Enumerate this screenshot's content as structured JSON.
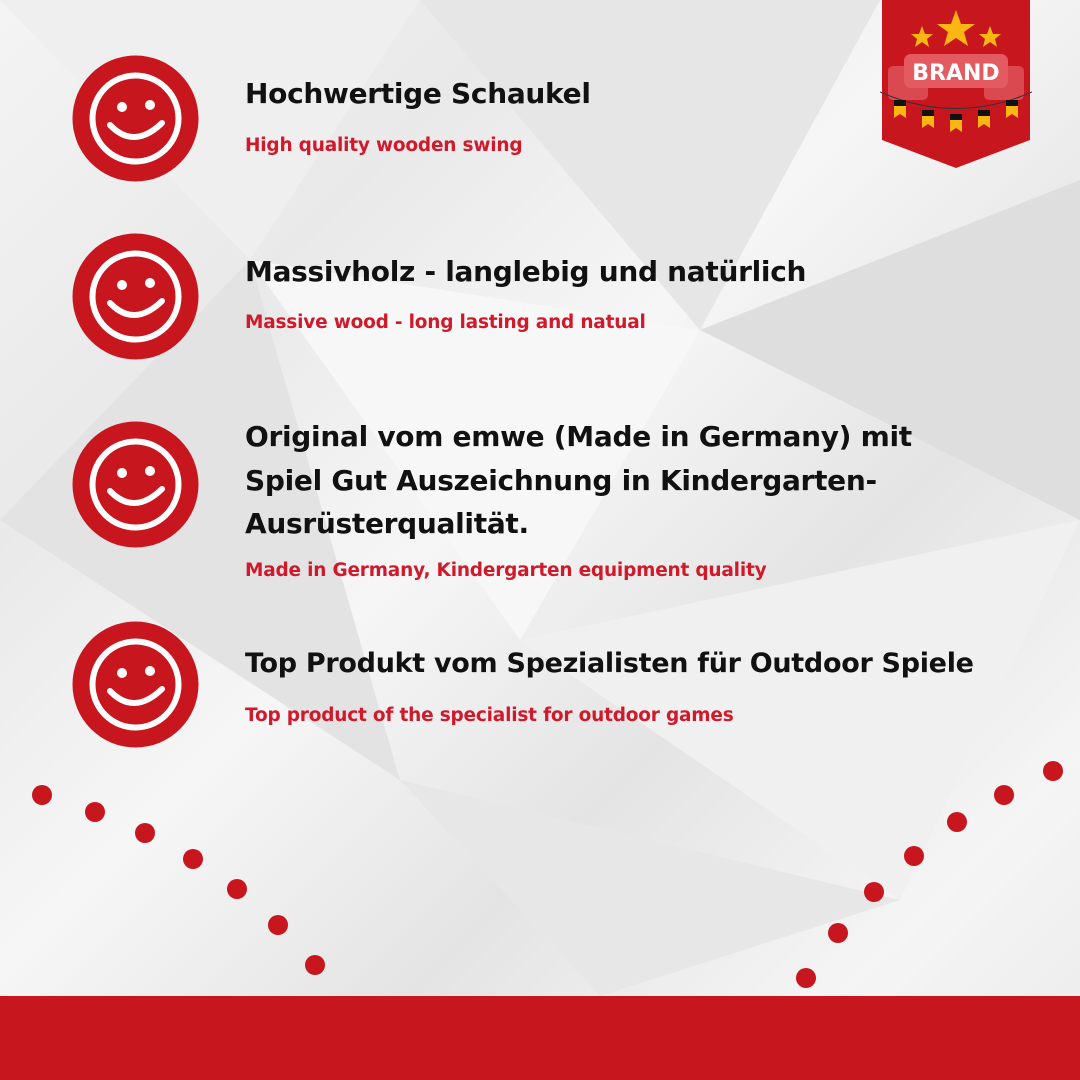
{
  "brand_badge": {
    "label": "BRAND",
    "color": "#c8161e"
  },
  "accent_color": "#c8161e",
  "features": [
    {
      "icon": "smiley-icon",
      "title": "Hochwertige Schaukel",
      "subtitle": "High quality wooden swing"
    },
    {
      "icon": "smiley-icon",
      "title": "Massivholz - langlebig und natürlich",
      "subtitle": "Massive wood - long lasting and natual"
    },
    {
      "icon": "smiley-icon",
      "title_lines": [
        "Original vom emwe (Made in Germany) mit",
        "Spiel Gut Auszeichnung in Kindergarten-",
        "Ausrüsterqualität."
      ],
      "subtitle": "Made in Germany, Kindergarten equipment quality"
    },
    {
      "icon": "smiley-icon",
      "title": "Top Produkt vom Spezialisten für Outdoor Spiele",
      "subtitle": "Top product of the specialist for outdoor games"
    }
  ]
}
